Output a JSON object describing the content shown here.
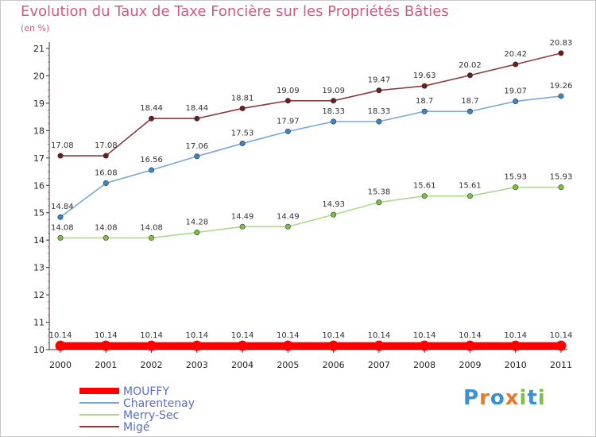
{
  "title": "Evolution du Taux de Taxe Foncière sur les Propriétés Bâties",
  "unit": "(en %)",
  "brand": {
    "letters": [
      "P",
      "r",
      "o",
      "x",
      "i",
      "t",
      "i"
    ],
    "colors": [
      "#3a8fd9",
      "#e8782a",
      "#3a8fd9",
      "#e8782a",
      "#7cc242",
      "#3a8fd9",
      "#7cc242"
    ]
  },
  "chart_data": {
    "type": "line",
    "title": "Evolution du Taux de Taxe Foncière sur les Propriétés Bâties",
    "ylabel": "(en %)",
    "x": [
      "2000",
      "2001",
      "2002",
      "2003",
      "2004",
      "2005",
      "2006",
      "2007",
      "2008",
      "2009",
      "2010",
      "2011"
    ],
    "ylim": [
      10,
      21
    ],
    "yticks": [
      "10",
      "11",
      "12",
      "13",
      "14",
      "15",
      "16",
      "17",
      "18",
      "19",
      "20",
      "21"
    ],
    "grid": false,
    "legend_position": "bottom-left",
    "series": [
      {
        "name": "MOUFFY",
        "color": "#ff0000",
        "point_color": "#ff0000",
        "thick": true,
        "values": [
          10.14,
          10.14,
          10.14,
          10.14,
          10.14,
          10.14,
          10.14,
          10.14,
          10.14,
          10.14,
          10.14,
          10.14
        ],
        "labels": [
          "10.14",
          "10.14",
          "10.14",
          "10.14",
          "10.14",
          "10.14",
          "10.14",
          "10.14",
          "10.14",
          "10.14",
          "10.14",
          "10.14"
        ]
      },
      {
        "name": "Charentenay",
        "color": "#78a8d8",
        "point_color": "#3c86c8",
        "thick": false,
        "values": [
          14.84,
          16.08,
          16.56,
          17.06,
          17.53,
          17.97,
          18.33,
          18.33,
          18.7,
          18.7,
          19.07,
          19.26
        ],
        "labels": [
          "14.84",
          "16.08",
          "16.56",
          "17.06",
          "17.53",
          "17.97",
          "18.33",
          "18.33",
          "18.7",
          "18.7",
          "19.07",
          "19.26"
        ]
      },
      {
        "name": "Merry-Sec",
        "color": "#a8dc88",
        "point_color": "#7cc242",
        "thick": false,
        "values": [
          14.08,
          14.08,
          14.08,
          14.28,
          14.49,
          14.49,
          14.93,
          15.38,
          15.61,
          15.61,
          15.93,
          15.93
        ],
        "labels": [
          "14.08",
          "14.08",
          "14.08",
          "14.28",
          "14.49",
          "14.49",
          "14.93",
          "15.38",
          "15.61",
          "15.61",
          "15.93",
          "15.93"
        ]
      },
      {
        "name": "Migé",
        "color": "#8a3c3c",
        "point_color": "#6a1e1e",
        "thick": false,
        "values": [
          17.08,
          17.08,
          18.44,
          18.44,
          18.81,
          19.09,
          19.09,
          19.47,
          19.63,
          20.02,
          20.42,
          20.83
        ],
        "labels": [
          "17.08",
          "17.08",
          "18.44",
          "18.44",
          "18.81",
          "19.09",
          "19.09",
          "19.47",
          "19.63",
          "20.02",
          "20.42",
          "20.83"
        ]
      }
    ]
  }
}
